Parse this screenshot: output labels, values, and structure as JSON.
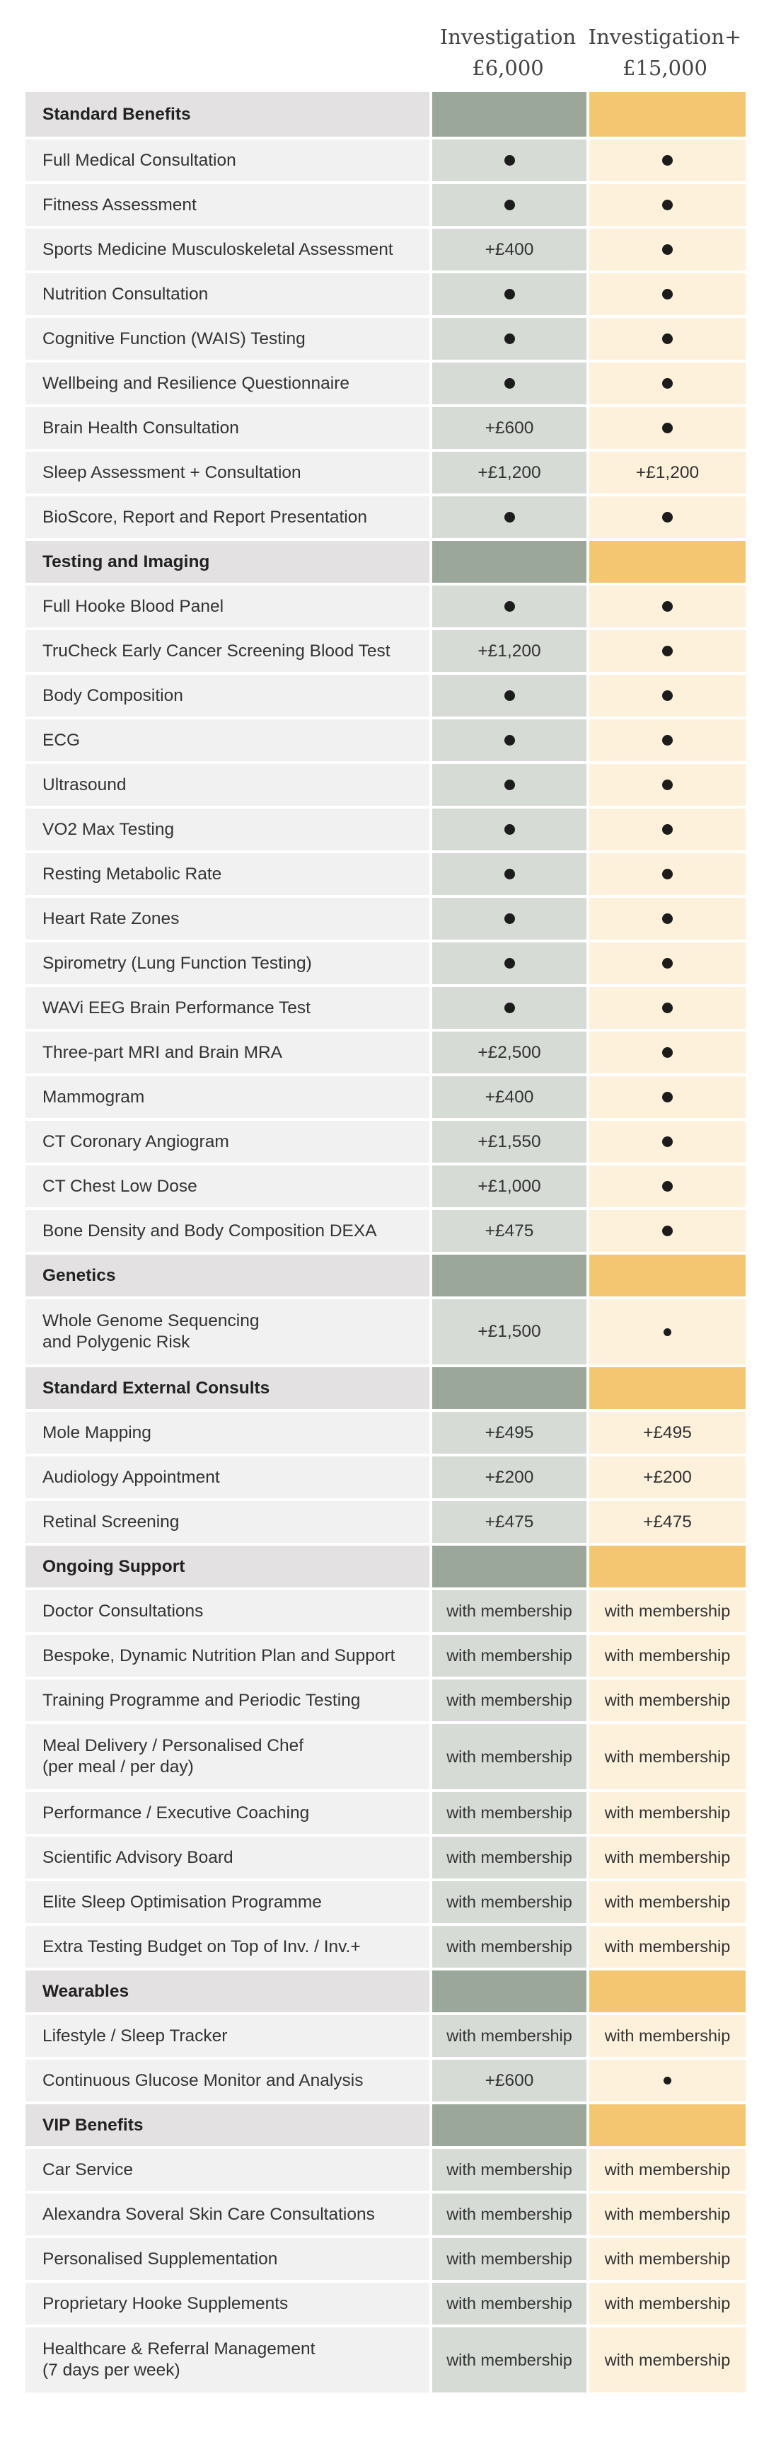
{
  "plans": [
    {
      "name": "Investigation",
      "price": "£6,000"
    },
    {
      "name": "Investigation+",
      "price": "£15,000"
    }
  ],
  "colors": {
    "section_label_bg": "#e3e1e1",
    "section_a_bg": "#9ba79b",
    "section_b_bg": "#f4c672",
    "row_label_bg": "#f1f1f1",
    "row_a_bg": "#d6dbd6",
    "row_b_bg": "#fdf1dc"
  },
  "rows": [
    {
      "type": "section",
      "label": "Standard Benefits",
      "h": 63
    },
    {
      "type": "item",
      "label": "Full Medical Consultation",
      "a": "dot",
      "b": "dot",
      "h": 59
    },
    {
      "type": "item",
      "label": "Fitness Assessment",
      "a": "dot",
      "b": "dot",
      "h": 59
    },
    {
      "type": "item",
      "label": "Sports Medicine Musculoskeletal Assessment",
      "a": "+£400",
      "b": "dot",
      "h": 59
    },
    {
      "type": "item",
      "label": "Nutrition Consultation",
      "a": "dot",
      "b": "dot",
      "h": 59
    },
    {
      "type": "item",
      "label": "Cognitive Function (WAIS) Testing",
      "a": "dot",
      "b": "dot",
      "h": 59
    },
    {
      "type": "item",
      "label": "Wellbeing and Resilience Questionnaire",
      "a": "dot",
      "b": "dot",
      "h": 59
    },
    {
      "type": "item",
      "label": "Brain Health Consultation",
      "a": "+£600",
      "b": "dot",
      "h": 59
    },
    {
      "type": "item",
      "label": "Sleep Assessment + Consultation",
      "a": "+£1,200",
      "b": "+£1,200",
      "h": 59
    },
    {
      "type": "item",
      "label": "BioScore, Report and Report Presentation",
      "a": "dot",
      "b": "dot",
      "h": 59
    },
    {
      "type": "section",
      "label": "Testing and Imaging",
      "h": 59
    },
    {
      "type": "item",
      "label": "Full Hooke Blood Panel",
      "a": "dot",
      "b": "dot",
      "h": 59
    },
    {
      "type": "item",
      "label": "TruCheck Early Cancer Screening Blood Test",
      "a": "+£1,200",
      "b": "dot",
      "h": 59
    },
    {
      "type": "item",
      "label": "Body Composition",
      "a": "dot",
      "b": "dot",
      "h": 59
    },
    {
      "type": "item",
      "label": "ECG",
      "a": "dot",
      "b": "dot",
      "h": 59
    },
    {
      "type": "item",
      "label": "Ultrasound",
      "a": "dot",
      "b": "dot",
      "h": 59
    },
    {
      "type": "item",
      "label": "VO2 Max Testing",
      "a": "dot",
      "b": "dot",
      "h": 59
    },
    {
      "type": "item",
      "label": "Resting Metabolic Rate",
      "a": "dot",
      "b": "dot",
      "h": 59
    },
    {
      "type": "item",
      "label": "Heart Rate Zones",
      "a": "dot",
      "b": "dot",
      "h": 59
    },
    {
      "type": "item",
      "label": "Spirometry (Lung Function Testing)",
      "a": "dot",
      "b": "dot",
      "h": 59
    },
    {
      "type": "item",
      "label": "WAVi EEG Brain Performance Test",
      "a": "dot",
      "b": "dot",
      "h": 59
    },
    {
      "type": "item",
      "label": "Three-part MRI and Brain MRA",
      "a": "+£2,500",
      "b": "dot",
      "h": 59
    },
    {
      "type": "item",
      "label": "Mammogram",
      "a": "+£400",
      "b": "dot",
      "h": 59
    },
    {
      "type": "item",
      "label": "CT Coronary Angiogram",
      "a": "+£1,550",
      "b": "dot",
      "h": 59
    },
    {
      "type": "item",
      "label": "CT Chest Low Dose",
      "a": "+£1,000",
      "b": "dot",
      "h": 59
    },
    {
      "type": "item",
      "label": "Bone Density and Body Composition DEXA",
      "a": "+£475",
      "b": "dot",
      "h": 59
    },
    {
      "type": "section",
      "label": "Genetics",
      "h": 59
    },
    {
      "type": "item",
      "label": "Whole Genome Sequencing\nand Polygenic Risk",
      "a": "+£1,500",
      "b": "dot-small",
      "h": 92
    },
    {
      "type": "section",
      "label": "Standard External Consults",
      "h": 59
    },
    {
      "type": "item",
      "label": "Mole Mapping",
      "a": "+£495",
      "b": "+£495",
      "h": 59
    },
    {
      "type": "item",
      "label": "Audiology Appointment",
      "a": "+£200",
      "b": "+£200",
      "h": 59
    },
    {
      "type": "item",
      "label": "Retinal Screening",
      "a": "+£475",
      "b": "+£475",
      "h": 59
    },
    {
      "type": "section",
      "label": "Ongoing Support",
      "h": 59
    },
    {
      "type": "item",
      "label": "Doctor Consultations",
      "a": "with membership",
      "b": "with membership",
      "h": 59
    },
    {
      "type": "item",
      "label": "Bespoke, Dynamic Nutrition Plan and Support",
      "a": "with membership",
      "b": "with membership",
      "h": 59
    },
    {
      "type": "item",
      "label": "Training Programme and Periodic Testing",
      "a": "with membership",
      "b": "with membership",
      "h": 59
    },
    {
      "type": "item",
      "label": "Meal Delivery / Personalised Chef\n(per meal / per day)",
      "a": "with membership",
      "b": "with membership",
      "h": 92
    },
    {
      "type": "item",
      "label": "Performance / Executive Coaching",
      "a": "with membership",
      "b": "with membership",
      "h": 59
    },
    {
      "type": "item",
      "label": "Scientific Advisory Board",
      "a": "with membership",
      "b": "with membership",
      "h": 59
    },
    {
      "type": "item",
      "label": "Elite Sleep Optimisation Programme",
      "a": "with membership",
      "b": "with membership",
      "h": 59
    },
    {
      "type": "item",
      "label": "Extra Testing Budget on Top of Inv. / Inv.+",
      "a": "with membership",
      "b": "with membership",
      "h": 59
    },
    {
      "type": "section",
      "label": "Wearables",
      "h": 59
    },
    {
      "type": "item",
      "label": "Lifestyle / Sleep Tracker",
      "a": "with membership",
      "b": "with membership",
      "h": 59
    },
    {
      "type": "item",
      "label": "Continuous Glucose Monitor and Analysis",
      "a": "+£600",
      "b": "dot-small",
      "h": 59
    },
    {
      "type": "section",
      "label": "VIP Benefits",
      "h": 59
    },
    {
      "type": "item",
      "label": "Car Service",
      "a": "with membership",
      "b": "with membership",
      "h": 59
    },
    {
      "type": "item",
      "label": "Alexandra Soveral Skin Care Consultations",
      "a": "with membership",
      "b": "with membership",
      "h": 59
    },
    {
      "type": "item",
      "label": "Personalised Supplementation",
      "a": "with membership",
      "b": "with membership",
      "h": 59
    },
    {
      "type": "item",
      "label": "Proprietary Hooke Supplements",
      "a": "with membership",
      "b": "with membership",
      "h": 59
    },
    {
      "type": "item",
      "label": "Healthcare & Referral Management\n(7 days per week)",
      "a": "with membership",
      "b": "with membership",
      "h": 92
    }
  ]
}
